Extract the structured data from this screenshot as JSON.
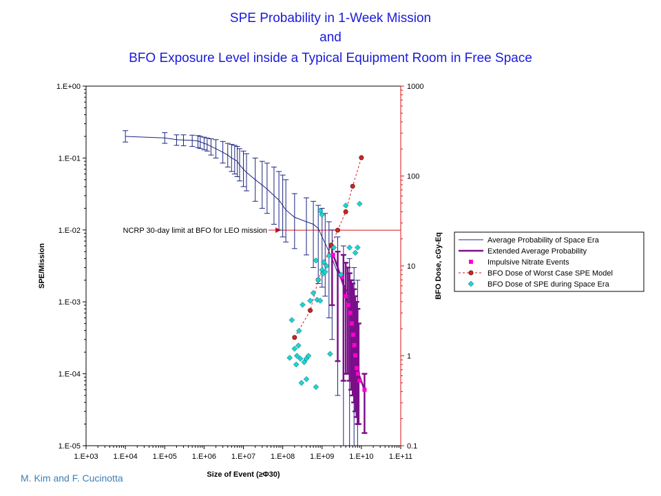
{
  "title_lines": [
    "SPE Probability in 1-Week Mission",
    "and",
    "BFO Exposure Level inside a Typical Equipment Room in Free Space"
  ],
  "credit": "M. Kim and F. Cucinotta",
  "chart_data": {
    "type": "scatter",
    "xlabel": "Size of Event (≥Φ30)",
    "ylabel_left": "SPE/Mission",
    "ylabel_right": "BFO Dose, cGy-Eq",
    "x_scale": "log",
    "y_left_scale": "log",
    "y_right_scale": "log",
    "xlim": [
      1000,
      100000000000
    ],
    "ylim_left": [
      1e-05,
      1
    ],
    "ylim_right": [
      0.1,
      1000
    ],
    "x_ticks": [
      "1.E+03",
      "1.E+04",
      "1.E+05",
      "1.E+06",
      "1.E+07",
      "1.E+08",
      "1.E+09",
      "1.E+10",
      "1.E+11"
    ],
    "y_left_ticks": [
      "1.E+00",
      "1.E-01",
      "1.E-02",
      "1.E-03",
      "1.E-04",
      "1.E-05"
    ],
    "y_right_ticks": [
      "1000",
      "100",
      "10",
      "1",
      "0.1"
    ],
    "grid": false,
    "legend_position": "right",
    "annotation": {
      "text": "NCRP 30-day limit at BFO for LEO mission",
      "dose_level": 25
    },
    "series": [
      {
        "name": "Average Probability of Space Era",
        "axis": "left",
        "style": "line-errorbar",
        "color": "#1a237e",
        "points": [
          [
            10000.0,
            0.2,
            0.24,
            0.167
          ],
          [
            100000.0,
            0.19,
            0.225,
            0.16
          ],
          [
            200000.0,
            0.18,
            0.21,
            0.15
          ],
          [
            300000.0,
            0.178,
            0.21,
            0.148
          ],
          [
            500000.0,
            0.176,
            0.208,
            0.145
          ],
          [
            700000.0,
            0.172,
            0.205,
            0.14
          ],
          [
            800000.0,
            0.168,
            0.2,
            0.136
          ],
          [
            1000000.0,
            0.16,
            0.195,
            0.13
          ],
          [
            1200000.0,
            0.155,
            0.19,
            0.125
          ],
          [
            1500000.0,
            0.145,
            0.185,
            0.11
          ],
          [
            2000000.0,
            0.135,
            0.18,
            0.1
          ],
          [
            3000000.0,
            0.12,
            0.17,
            0.085
          ],
          [
            4000000.0,
            0.11,
            0.16,
            0.075
          ],
          [
            5000000.0,
            0.1,
            0.155,
            0.065
          ],
          [
            6000000.0,
            0.095,
            0.15,
            0.06
          ],
          [
            7000000.0,
            0.09,
            0.145,
            0.055
          ],
          [
            8000000.0,
            0.08,
            0.135,
            0.048
          ],
          [
            10000000.0,
            0.07,
            0.125,
            0.04
          ],
          [
            12000000.0,
            0.063,
            0.115,
            0.035
          ],
          [
            20000000.0,
            0.05,
            0.1,
            0.025
          ],
          [
            30000000.0,
            0.042,
            0.09,
            0.02
          ],
          [
            40000000.0,
            0.037,
            0.085,
            0.017
          ],
          [
            60000000.0,
            0.03,
            0.075,
            0.012
          ],
          [
            80000000.0,
            0.026,
            0.065,
            0.01
          ],
          [
            100000000.0,
            0.022,
            0.058,
            0.008
          ],
          [
            120000000.0,
            0.019,
            0.05,
            0.0068
          ],
          [
            200000000.0,
            0.015,
            0.032,
            0.0055
          ],
          [
            400000000.0,
            0.013,
            0.028,
            0.0045
          ],
          [
            600000000.0,
            0.012,
            0.025,
            0.003
          ],
          [
            800000000.0,
            0.0105,
            0.022,
            0.0018
          ],
          [
            1000000000.0,
            0.008,
            0.02,
            0.0016
          ],
          [
            1200000000.0,
            0.0065,
            0.017,
            0.0012
          ],
          [
            1500000000.0,
            0.005,
            0.013,
            0.0006
          ],
          [
            1800000000.0,
            0.004,
            0.01,
            0.0003
          ],
          [
            2500000000.0,
            0.0025,
            0.008,
            5e-05
          ],
          [
            3500000000.0,
            0.0018,
            0.006,
            1e-05
          ],
          [
            5000000000.0,
            0.0012,
            0.004,
            1e-05
          ],
          [
            6500000000.0,
            0.0008,
            0.003,
            1e-05
          ],
          [
            8000000000.0,
            0.0005,
            0.002,
            1e-05
          ]
        ]
      },
      {
        "name": "Extended Average Probability",
        "axis": "left",
        "style": "thick-line-errorbar",
        "color": "#7b0f8a",
        "points": [
          [
            1800000000.0,
            0.005,
            0.0058,
            0.0009
          ],
          [
            2500000000.0,
            0.003,
            0.005,
            0.00015
          ],
          [
            3500000000.0,
            0.0017,
            0.0045,
            8e-05
          ],
          [
            4000000000.0,
            0.0012,
            0.0035,
            0.0001
          ],
          [
            4500000000.0,
            0.001,
            0.003,
            0.0001
          ],
          [
            5000000000.0,
            0.0008,
            0.0025,
            8e-05
          ],
          [
            5500000000.0,
            0.0006,
            0.002,
            6e-05
          ],
          [
            6000000000.0,
            0.0005,
            0.0018,
            5e-05
          ],
          [
            6500000000.0,
            0.0003,
            0.0015,
            4e-05
          ],
          [
            7000000000.0,
            0.00025,
            0.0012,
            3e-05
          ],
          [
            7500000000.0,
            0.0002,
            0.001,
            2.5e-05
          ],
          [
            8000000000.0,
            0.00015,
            0.0008,
            2e-05
          ],
          [
            8500000000.0,
            0.0001,
            0.0005,
            2e-05
          ],
          [
            12000000000.0,
            6e-05,
            0.0001,
            1.5e-05
          ]
        ]
      },
      {
        "name": "Impulsive Nitrate Events",
        "axis": "left",
        "style": "square",
        "color": "#ff00cc",
        "points": [
          [
            1900000000.0,
            0.0045
          ],
          [
            3200000000.0,
            0.0022
          ],
          [
            4000000000.0,
            0.0012
          ],
          [
            4600000000.0,
            0.0009
          ],
          [
            5200000000.0,
            0.0007
          ],
          [
            5700000000.0,
            0.0005
          ],
          [
            6200000000.0,
            0.00035
          ],
          [
            6600000000.0,
            0.00025
          ],
          [
            7000000000.0,
            0.00018
          ],
          [
            7600000000.0,
            0.00012
          ],
          [
            8200000000.0,
            0.0001
          ],
          [
            9000000000.0,
            8e-05
          ],
          [
            12000000000.0,
            6e-05
          ]
        ]
      },
      {
        "name": "BFO Dose of Worst Case SPE Model",
        "axis": "right",
        "style": "dashed-line-circle",
        "color": "#c62828",
        "points": [
          [
            200000000.0,
            1.6
          ],
          [
            500000000.0,
            3.2
          ],
          [
            800000000.0,
            7
          ],
          [
            1700000000.0,
            17
          ],
          [
            2500000000.0,
            25
          ],
          [
            4000000000.0,
            40
          ],
          [
            6000000000.0,
            77
          ],
          [
            10000000000.0,
            160
          ]
        ]
      },
      {
        "name": "BFO Dose of SPE during Space Era",
        "axis": "right",
        "style": "diamond",
        "color": "#1dd3d3",
        "points": [
          [
            150000000.0,
            0.95
          ],
          [
            170000000.0,
            2.5
          ],
          [
            200000000.0,
            1.2
          ],
          [
            220000000.0,
            0.8
          ],
          [
            230000000.0,
            1.0
          ],
          [
            250000000.0,
            1.3
          ],
          [
            260000000.0,
            1.9
          ],
          [
            280000000.0,
            0.93
          ],
          [
            300000000.0,
            0.5
          ],
          [
            320000000.0,
            3.7
          ],
          [
            350000000.0,
            0.85
          ],
          [
            400000000.0,
            0.93
          ],
          [
            450000000.0,
            1.0
          ],
          [
            500000000.0,
            4.1
          ],
          [
            600000000.0,
            5.0
          ],
          [
            700000000.0,
            11.5
          ],
          [
            750000000.0,
            4.2
          ],
          [
            800000000.0,
            7.0
          ],
          [
            900000000.0,
            4.1
          ],
          [
            1000000000.0,
            9.0
          ],
          [
            1050000000.0,
            8.2
          ],
          [
            1100000000.0,
            11
          ],
          [
            1200000000.0,
            8.6
          ],
          [
            1300000000.0,
            10
          ],
          [
            1500000000.0,
            13
          ],
          [
            1600000000.0,
            1.05
          ],
          [
            2000000000.0,
            16
          ],
          [
            3000000000.0,
            8.0
          ],
          [
            4000000000.0,
            47
          ],
          [
            5000000000.0,
            16
          ],
          [
            7000000000.0,
            14
          ],
          [
            8000000000.0,
            16
          ],
          [
            9000000000.0,
            49
          ],
          [
            1000000000.0,
            37
          ],
          [
            900000000.0,
            41
          ],
          [
            400000000.0,
            0.55
          ],
          [
            700000000.0,
            0.45
          ]
        ]
      }
    ]
  }
}
